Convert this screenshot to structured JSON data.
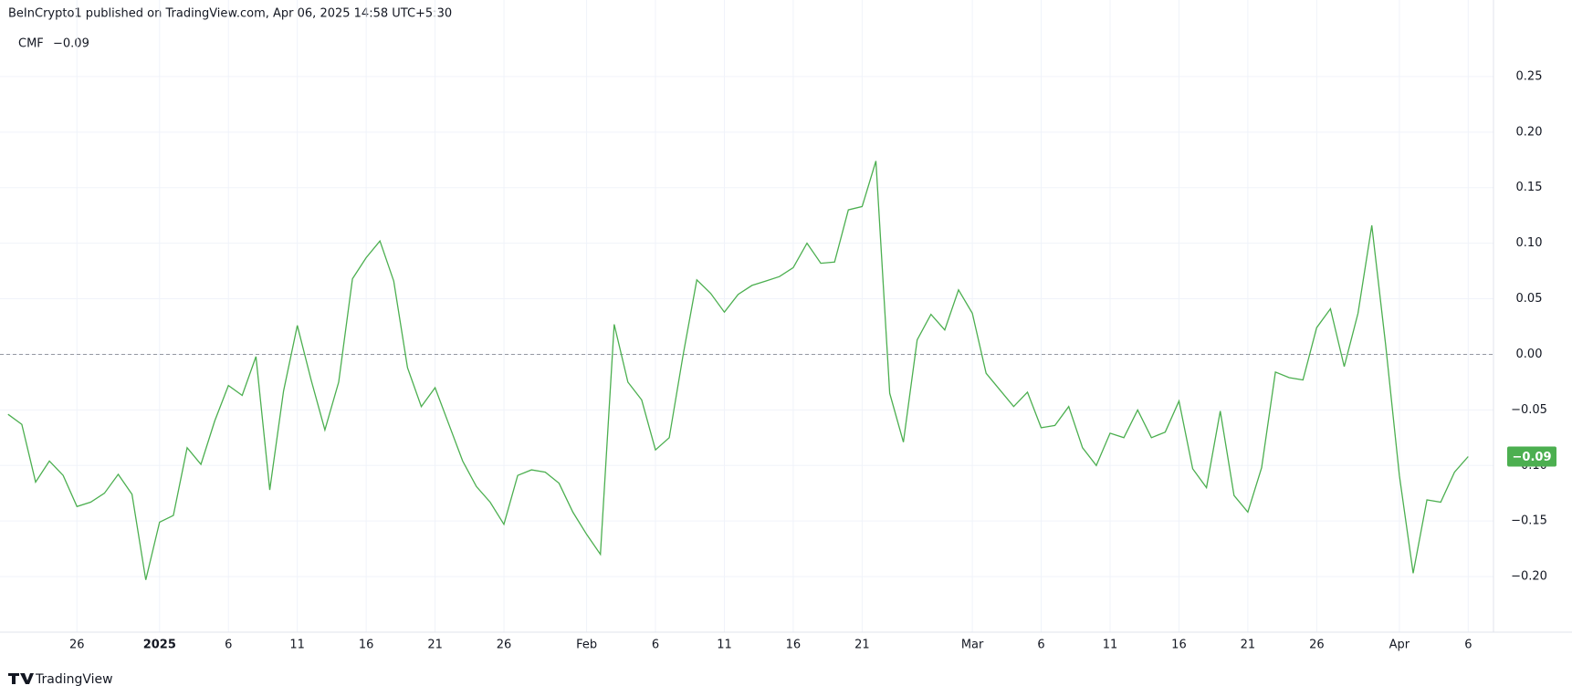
{
  "header": "BeInCrypto1 published on TradingView.com, Apr 06, 2025 14:58 UTC+5:30",
  "footer": "TradingView",
  "chart_data": {
    "type": "line",
    "last_value_label": "−0.09",
    "categories": [
      null,
      null,
      null,
      null,
      null,
      "26",
      null,
      null,
      null,
      null,
      null,
      "2025",
      null,
      null,
      null,
      null,
      "6",
      null,
      null,
      null,
      null,
      "11",
      null,
      null,
      null,
      null,
      "16",
      null,
      null,
      null,
      null,
      "21",
      null,
      null,
      null,
      null,
      "26",
      null,
      null,
      null,
      null,
      null,
      "Feb",
      null,
      null,
      null,
      null,
      "6",
      null,
      null,
      null,
      null,
      "11",
      null,
      null,
      null,
      null,
      "16",
      null,
      null,
      null,
      null,
      "21",
      null,
      null,
      null,
      null,
      null,
      null,
      null,
      "Mar",
      null,
      null,
      null,
      null,
      "6",
      null,
      null,
      null,
      null,
      "11",
      null,
      null,
      null,
      null,
      "16",
      null,
      null,
      null,
      null,
      "21",
      null,
      null,
      null,
      null,
      "26",
      null,
      null,
      null,
      null,
      null,
      "Apr",
      null,
      null,
      null,
      null,
      "6"
    ],
    "series": [
      {
        "name": "CMF",
        "color": "#4caf50",
        "value_label": "−0.09",
        "values": [
          -0.054,
          -0.063,
          -0.115,
          -0.096,
          -0.109,
          -0.137,
          -0.133,
          -0.125,
          -0.108,
          -0.126,
          -0.203,
          -0.151,
          -0.145,
          -0.084,
          -0.099,
          -0.06,
          -0.028,
          -0.037,
          -0.002,
          -0.122,
          -0.033,
          0.026,
          -0.023,
          -0.068,
          -0.025,
          0.068,
          0.087,
          0.102,
          0.066,
          -0.012,
          -0.047,
          -0.03,
          -0.063,
          -0.096,
          -0.119,
          -0.133,
          -0.153,
          -0.109,
          -0.104,
          -0.106,
          -0.116,
          -0.142,
          -0.162,
          -0.18,
          0.027,
          -0.025,
          -0.041,
          -0.086,
          -0.075,
          -0.001,
          0.067,
          0.055,
          0.038,
          0.054,
          0.062,
          0.066,
          0.07,
          0.078,
          0.1,
          0.082,
          0.083,
          0.13,
          0.133,
          0.174,
          -0.035,
          -0.079,
          0.013,
          0.036,
          0.022,
          0.058,
          0.037,
          -0.017,
          -0.032,
          -0.047,
          -0.034,
          -0.066,
          -0.064,
          -0.047,
          -0.084,
          -0.1,
          -0.071,
          -0.075,
          -0.05,
          -0.075,
          -0.07,
          -0.042,
          -0.103,
          -0.12,
          -0.051,
          -0.127,
          -0.142,
          -0.102,
          -0.016,
          -0.021,
          -0.023,
          0.024,
          0.041,
          -0.011,
          0.037,
          0.116,
          0.009,
          -0.109,
          -0.197,
          -0.131,
          -0.133,
          -0.106,
          -0.092
        ]
      }
    ],
    "ylim": [
      -0.25,
      0.3
    ],
    "yticks": [
      0.25,
      {
        "value": 0.2,
        "label": "0.20"
      },
      0.15,
      {
        "value": 0.1,
        "label": "0.10"
      },
      0.05,
      {
        "value": 0,
        "label": "0.00"
      },
      {
        "value": -0.05,
        "label": "−0.05"
      },
      {
        "value": -0.1,
        "label": "−0.10"
      },
      {
        "value": -0.15,
        "label": "−0.15"
      },
      {
        "value": -0.2,
        "label": "−0.20"
      }
    ],
    "baseline": 0,
    "grid": true
  }
}
